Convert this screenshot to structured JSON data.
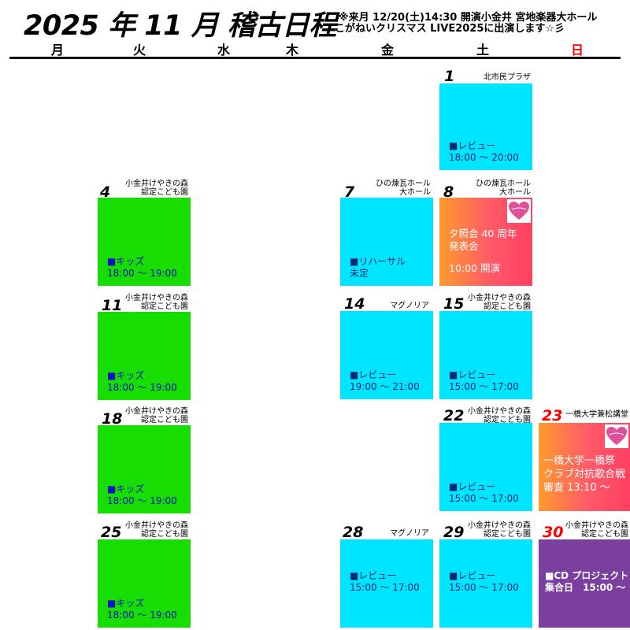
{
  "header": {
    "title": "2025 年 11 月 稽古日程",
    "notice_line1": "※来月 12/20(土)14:30 開演小金井 宮地楽器大ホール",
    "notice_line2": "こがねいクリスマス LIVE2025に出演します☆彡"
  },
  "weekdays": [
    "月",
    "火",
    "水",
    "木",
    "金",
    "土",
    "日"
  ],
  "colors": {
    "cyan": "#00e5ff",
    "green": "#18dd00",
    "purple": "#7b3fa0",
    "sunday": "#ff0000"
  },
  "cells": {
    "d1": {
      "day": "1",
      "venue": "北市民プラザ",
      "line1": "■レビュー",
      "line2": "18:00 ～ 20:00"
    },
    "d4": {
      "day": "4",
      "venue1": "小金井けやきの森",
      "venue2": "認定こども園",
      "line1": "■キッズ",
      "line2": "18:00 ～ 19:00"
    },
    "d7": {
      "day": "7",
      "venue1": "ひの煉瓦ホール",
      "venue2": "大ホール",
      "line1": "■リハーサル",
      "line2": "未定"
    },
    "d8": {
      "day": "8",
      "venue1": "ひの煉瓦ホール",
      "venue2": "大ホール",
      "line1": "夕照会 40 周年",
      "line2": "発表会",
      "line3": "10:00 開演",
      "heart_icon": "heart-logo-icon"
    },
    "d11": {
      "day": "11",
      "venue1": "小金井けやきの森",
      "venue2": "認定こども園",
      "line1": "■キッズ",
      "line2": "18:00 ～ 19:00"
    },
    "d14": {
      "day": "14",
      "venue": "マグノリア",
      "line1": "■レビュー",
      "line2": "19:00 ～ 21:00"
    },
    "d15": {
      "day": "15",
      "venue1": "小金井けやきの森",
      "venue2": "認定こども園",
      "line1": "■レビュー",
      "line2": "15:00 ～ 17:00"
    },
    "d18": {
      "day": "18",
      "venue1": "小金井けやきの森",
      "venue2": "認定こども園",
      "line1": "■キッズ",
      "line2": "18:00 ～ 19:00"
    },
    "d22": {
      "day": "22",
      "venue1": "小金井けやきの森",
      "venue2": "認定こども園",
      "line1": "■レビュー",
      "line2": "15:00 ～ 17:00"
    },
    "d23": {
      "day": "23",
      "venue": "一橋大学兼松講堂",
      "line1": "一橋大学一橋祭",
      "line2": "クラブ対抗歌合戦",
      "line3": "審査 13:10 ～",
      "heart_icon": "heart-logo-icon"
    },
    "d25": {
      "day": "25",
      "venue1": "小金井けやきの森",
      "venue2": "認定こども園",
      "line1": "■キッズ",
      "line2": "18:00 ～ 19:00"
    },
    "d28": {
      "day": "28",
      "venue": "マグノリア",
      "line1": "■レビュー",
      "line2": "15:00 ～ 17:00"
    },
    "d29": {
      "day": "29",
      "venue1": "小金井けやきの森",
      "venue2": "認定こども園",
      "line1": "■レビュー",
      "line2": "15:00 ～ 17:00"
    },
    "d30": {
      "day": "30",
      "venue1": "小金井けやきの森",
      "venue2": "認定こども園",
      "line1": "■CD プロジェクト",
      "line2": "集合日　15:00 ～"
    }
  }
}
